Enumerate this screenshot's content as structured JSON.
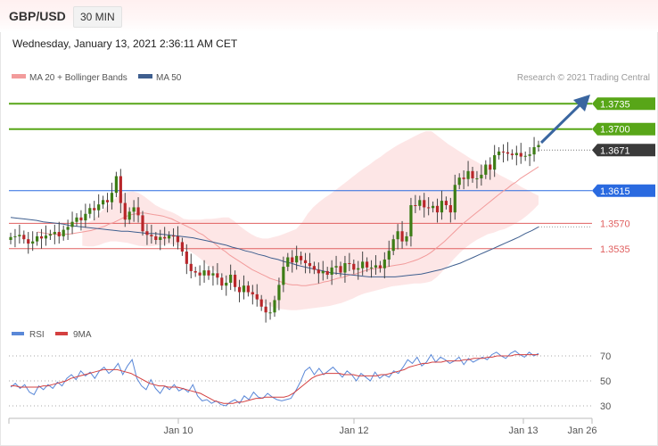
{
  "header": {
    "pair": "GBP/USD",
    "timeframe": "30 MIN",
    "datetime": "Wednesday, January 13, 2021 2:36:11 AM CET"
  },
  "copyright": "Research © 2021 Trading Central",
  "colors": {
    "bollinger": "#f29b9b",
    "band_fill": "#fde3e3",
    "ma50": "#3f5f8f",
    "green": "#58a618",
    "blue": "#2a6ae0",
    "red": "#e06060",
    "dark": "#3a3a3a",
    "up_candle": "#3d7d16",
    "down_candle": "#b8262a",
    "rsi": "#5a88d8",
    "rsi_ma": "#d44040",
    "arrow": "#3a66a0"
  },
  "chart_data": [
    {
      "type": "candlestick",
      "legend": [
        {
          "label": "MA 20 + Bollinger Bands",
          "color": "#f29b9b"
        },
        {
          "label": "MA 50",
          "color": "#3f5f8f"
        }
      ],
      "x_ticks": [
        "Jan 10",
        "Jan 12",
        "Jan 13",
        "Jan 26"
      ],
      "ylim": [
        1.3435,
        1.3755
      ],
      "levels": [
        {
          "value": 1.3735,
          "label": "1.3735",
          "style": "green"
        },
        {
          "value": 1.37,
          "label": "1.3700",
          "style": "green"
        },
        {
          "value": 1.3671,
          "label": "1.3671",
          "style": "dark"
        },
        {
          "value": 1.3615,
          "label": "1.3615",
          "style": "blue"
        },
        {
          "value": 1.357,
          "label": "1.3570",
          "style": "red"
        },
        {
          "value": 1.3535,
          "label": "1.3535",
          "style": "red"
        }
      ],
      "series": {
        "close": [
          1.3551,
          1.3552,
          1.3554,
          1.3548,
          1.3542,
          1.3545,
          1.3552,
          1.3549,
          1.3553,
          1.3555,
          1.3558,
          1.3552,
          1.3561,
          1.3565,
          1.3572,
          1.3578,
          1.3574,
          1.3583,
          1.3591,
          1.3588,
          1.3596,
          1.3602,
          1.3599,
          1.3612,
          1.3635,
          1.3598,
          1.3575,
          1.3586,
          1.3592,
          1.3581,
          1.3559,
          1.3554,
          1.3552,
          1.3547,
          1.3551,
          1.3549,
          1.3553,
          1.3552,
          1.3544,
          1.3531,
          1.3514,
          1.3504,
          1.3502,
          1.3498,
          1.3505,
          1.3498,
          1.3501,
          1.3495,
          1.3484,
          1.3488,
          1.3499,
          1.3482,
          1.3475,
          1.3484,
          1.3475,
          1.3472,
          1.3465,
          1.3455,
          1.3447,
          1.3447,
          1.3464,
          1.3485,
          1.351,
          1.3523,
          1.3516,
          1.3525,
          1.3519,
          1.3515,
          1.3511,
          1.3506,
          1.3501,
          1.3504,
          1.3499,
          1.3509,
          1.3511,
          1.3502,
          1.3515,
          1.3514,
          1.3506,
          1.3508,
          1.3517,
          1.3509,
          1.3509,
          1.3512,
          1.3508,
          1.352,
          1.3532,
          1.3548,
          1.3559,
          1.3545,
          1.3552,
          1.3595,
          1.3594,
          1.3602,
          1.3592,
          1.3591,
          1.3594,
          1.3585,
          1.3601,
          1.3595,
          1.3585,
          1.3623,
          1.3633,
          1.3631,
          1.3642,
          1.3632,
          1.3632,
          1.3637,
          1.3651,
          1.3644,
          1.3664,
          1.3669,
          1.3668,
          1.3666,
          1.3664,
          1.3667,
          1.3662,
          1.3663,
          1.3665,
          1.3675,
          1.3678
        ],
        "ma20": [
          1.3558,
          1.3557,
          1.3556,
          1.3555,
          1.3555,
          1.3554,
          1.3555,
          1.3555,
          1.3556,
          1.3557,
          1.3558,
          1.3559,
          1.356,
          1.3562,
          1.3564,
          1.3566,
          1.3569,
          1.3571,
          1.3574,
          1.3577,
          1.358,
          1.3582,
          1.3583,
          1.3584,
          1.3584,
          1.3583,
          1.3582,
          1.3581,
          1.358,
          1.3578,
          1.3576,
          1.3573,
          1.357,
          1.3567,
          1.3564,
          1.3561,
          1.3557,
          1.3554,
          1.3549,
          1.3545,
          1.354,
          1.3535,
          1.3531,
          1.3526,
          1.3522,
          1.3518,
          1.3514,
          1.351,
          1.3506,
          1.3503,
          1.35,
          1.3497,
          1.3494,
          1.3492,
          1.349,
          1.3488,
          1.3486,
          1.3485,
          1.3485,
          1.3484,
          1.3484,
          1.3485,
          1.3486,
          1.3487,
          1.3489,
          1.349,
          1.3492,
          1.3494,
          1.3495,
          1.3497,
          1.3499,
          1.35,
          1.3502,
          1.3504,
          1.3506,
          1.3507,
          1.3508,
          1.3509,
          1.351,
          1.3511,
          1.3512,
          1.3513,
          1.3514,
          1.3516,
          1.3518,
          1.352,
          1.3523,
          1.3526,
          1.353,
          1.3535,
          1.354,
          1.3545,
          1.3551,
          1.3557,
          1.3563,
          1.3569,
          1.3574,
          1.3579,
          1.3584,
          1.3589,
          1.3594,
          1.3599,
          1.3604,
          1.3609,
          1.3614,
          1.3618,
          1.3623,
          1.3627,
          1.3632,
          1.3636,
          1.364,
          1.3644,
          1.3648
        ],
        "bb_upper": [
          1.357,
          1.3571,
          1.3575,
          1.3583,
          1.3591,
          1.3598,
          1.3605,
          1.361,
          1.3613,
          1.3614,
          1.3612,
          1.3607,
          1.3601,
          1.3595,
          1.3591,
          1.3588,
          1.3585,
          1.3581,
          1.3576,
          1.3575,
          1.3575,
          1.3575,
          1.3576,
          1.3576,
          1.3577,
          1.3578,
          1.3578,
          1.3573,
          1.3566,
          1.356,
          1.3555,
          1.3551,
          1.3549,
          1.3549,
          1.3551,
          1.3553,
          1.3556,
          1.3559,
          1.3562,
          1.3571,
          1.3583,
          1.3592,
          1.3599,
          1.3605,
          1.361,
          1.3616,
          1.3622,
          1.3628,
          1.3634,
          1.364,
          1.3646,
          1.3651,
          1.3657,
          1.3662,
          1.3668,
          1.3673,
          1.3678,
          1.3682,
          1.3686,
          1.369,
          1.3694,
          1.3697,
          1.3697,
          1.3691,
          1.3685,
          1.3679,
          1.3674,
          1.3669,
          1.3664,
          1.3659,
          1.3655,
          1.365,
          1.3646,
          1.3642,
          1.3637,
          1.3633,
          1.3629,
          1.3625,
          1.362,
          1.3616,
          1.3612,
          1.3608
        ],
        "bb_lower": [
          1.3539,
          1.3538,
          1.3538,
          1.354,
          1.3543,
          1.3545,
          1.3545,
          1.3544,
          1.3543,
          1.3541,
          1.3539,
          1.3538,
          1.3538,
          1.3539,
          1.354,
          1.3541,
          1.3541,
          1.3539,
          1.3536,
          1.3532,
          1.3527,
          1.3521,
          1.3514,
          1.3508,
          1.3502,
          1.3496,
          1.3491,
          1.3485,
          1.348,
          1.3475,
          1.347,
          1.3465,
          1.3461,
          1.3457,
          1.3454,
          1.3452,
          1.3451,
          1.345,
          1.345,
          1.3451,
          1.3452,
          1.3453,
          1.3454,
          1.3455,
          1.3456,
          1.3458,
          1.346,
          1.3463,
          1.3466,
          1.347,
          1.3473,
          1.3475,
          1.3477,
          1.3479,
          1.3481,
          1.3483,
          1.3484,
          1.3485,
          1.3486,
          1.3487,
          1.3487,
          1.3488,
          1.349,
          1.3496,
          1.3504,
          1.3512,
          1.3521,
          1.3529,
          1.3536,
          1.3542,
          1.3547,
          1.3551,
          1.3555,
          1.3557,
          1.356,
          1.3562,
          1.3566,
          1.357,
          1.3575,
          1.3581,
          1.3588,
          1.3596
        ],
        "ma50": [
          1.3578,
          1.3577,
          1.3576,
          1.3575,
          1.3574,
          1.3572,
          1.3571,
          1.357,
          1.3569,
          1.3567,
          1.3566,
          1.3565,
          1.3564,
          1.3563,
          1.3562,
          1.3561,
          1.356,
          1.3559,
          1.3559,
          1.3558,
          1.3557,
          1.3556,
          1.3556,
          1.3555,
          1.3554,
          1.3553,
          1.3552,
          1.3551,
          1.355,
          1.3548,
          1.3546,
          1.3544,
          1.3542,
          1.354,
          1.3537,
          1.3535,
          1.3532,
          1.353,
          1.3527,
          1.3525,
          1.3522,
          1.352,
          1.3517,
          1.3515,
          1.3512,
          1.351,
          1.3508,
          1.3506,
          1.3504,
          1.3502,
          1.3501,
          1.35,
          1.3499,
          1.3498,
          1.3497,
          1.3496,
          1.3496,
          1.3496,
          1.3496,
          1.3496,
          1.3497,
          1.3498,
          1.3499,
          1.35,
          1.3502,
          1.3504,
          1.3506,
          1.3509,
          1.3512,
          1.3515,
          1.3519,
          1.3523,
          1.3527,
          1.3531,
          1.3535,
          1.3539,
          1.3543,
          1.3547,
          1.3551,
          1.3556,
          1.356,
          1.3565
        ]
      }
    },
    {
      "type": "line",
      "legend": [
        {
          "label": "RSI",
          "color": "#5a88d8"
        },
        {
          "label": "9MA",
          "color": "#d44040"
        }
      ],
      "ylim": [
        25,
        80
      ],
      "y_ticks": [
        70,
        50,
        30
      ],
      "series": [
        {
          "name": "RSI",
          "values": [
            45,
            48,
            44,
            47,
            41,
            39,
            46,
            43,
            47,
            44,
            49,
            46,
            52,
            55,
            51,
            58,
            54,
            57,
            52,
            58,
            61,
            56,
            59,
            64,
            55,
            62,
            67,
            52,
            46,
            43,
            51,
            44,
            40,
            46,
            43,
            47,
            42,
            44,
            41,
            47,
            38,
            34,
            35,
            32,
            34,
            31,
            30,
            33,
            35,
            32,
            38,
            35,
            41,
            37,
            36,
            40,
            37,
            35,
            34,
            35,
            36,
            42,
            49,
            58,
            61,
            55,
            60,
            55,
            58,
            61,
            57,
            53,
            58,
            55,
            50,
            56,
            53,
            50,
            57,
            52,
            55,
            53,
            58,
            56,
            61,
            67,
            64,
            69,
            62,
            65,
            71,
            65,
            69,
            67,
            64,
            66,
            69,
            63,
            68,
            65,
            67,
            69,
            67,
            71,
            73,
            70,
            68,
            72,
            74,
            71,
            69,
            73,
            70,
            72
          ]
        },
        {
          "name": "9MA",
          "values": [
            46,
            46,
            45,
            45,
            45,
            45,
            45,
            46,
            46,
            47,
            48,
            49,
            50,
            52,
            53,
            54,
            55,
            56,
            57,
            58,
            59,
            59,
            59,
            59,
            58,
            57,
            56,
            54,
            52,
            50,
            48,
            47,
            46,
            46,
            45,
            45,
            45,
            44,
            43,
            42,
            41,
            40,
            38,
            36,
            34,
            33,
            32,
            32,
            32,
            33,
            33,
            34,
            35,
            36,
            36,
            37,
            37,
            37,
            37,
            37,
            38,
            40,
            43,
            46,
            49,
            52,
            54,
            55,
            56,
            56,
            56,
            56,
            55,
            55,
            55,
            54,
            54,
            54,
            54,
            54,
            55,
            55,
            56,
            57,
            58,
            59,
            61,
            62,
            63,
            64,
            64,
            65,
            65,
            65,
            66,
            66,
            66,
            66,
            67,
            67,
            68,
            68,
            68,
            69,
            69,
            70,
            70,
            70,
            70,
            71,
            71,
            71,
            71,
            71,
            71
          ]
        }
      ]
    }
  ]
}
